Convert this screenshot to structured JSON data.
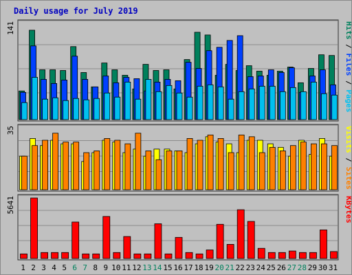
{
  "chart_data": {
    "type": "bar",
    "title": "Daily usage for July 2019",
    "days": [
      "1",
      "2",
      "3",
      "4",
      "5",
      "6",
      "7",
      "8",
      "9",
      "10",
      "11",
      "12",
      "13",
      "14",
      "15",
      "16",
      "17",
      "18",
      "19",
      "20",
      "21",
      "22",
      "23",
      "24",
      "25",
      "26",
      "27",
      "28",
      "29",
      "30",
      "31"
    ],
    "weekend_days": [
      "6",
      "7",
      "13",
      "14",
      "20",
      "21",
      "27",
      "28"
    ],
    "panels": [
      {
        "name": "top",
        "axis_max_label": "141",
        "ylim": [
          0,
          141
        ],
        "legend": [
          "Pages",
          "Files",
          "Hits"
        ],
        "legend_colors": [
          "#00c0f0",
          "#0040ff",
          "#00805c"
        ],
        "series": [
          {
            "name": "Hits",
            "color": "#00805c",
            "values": [
              42,
              131,
              73,
              73,
              72,
              107,
              69,
              48,
              83,
              73,
              65,
              45,
              81,
              72,
              73,
              45,
              88,
              128,
              124,
              65,
              81,
              72,
              79,
              71,
              65,
              71,
              77,
              54,
              75,
              95,
              94
            ]
          },
          {
            "name": "Files",
            "color": "#0040ff",
            "values": [
              40,
              108,
              59,
              53,
              58,
              93,
              59,
              48,
              64,
              54,
              62,
              60,
              42,
              55,
              59,
              57,
              84,
              75,
              101,
              106,
              116,
              123,
              63,
              64,
              73,
              69,
              76,
              40,
              64,
              73,
              51
            ]
          },
          {
            "name": "Pages",
            "color": "#00c0f0",
            "values": [
              25,
              62,
              30,
              32,
              28,
              31,
              29,
              31,
              39,
              33,
              55,
              30,
              59,
              41,
              50,
              39,
              33,
              49,
              51,
              48,
              30,
              41,
              45,
              49,
              49,
              41,
              47,
              41,
              55,
              38,
              36
            ]
          }
        ]
      },
      {
        "name": "middle",
        "axis_max_label": "35",
        "ylim": [
          0,
          35
        ],
        "legend": [
          "Sites",
          "Visits"
        ],
        "legend_colors": [
          "#ff8000",
          "#ffff00"
        ],
        "series": [
          {
            "name": "Visits",
            "color": "#ffff00",
            "values": [
              19,
              29,
              25,
              28,
              26,
              26,
              16,
              21,
              28,
              27,
              21,
              23,
              19,
              23,
              23,
              22,
              21,
              26,
              30,
              27,
              26,
              21,
              28,
              28,
              26,
              24,
              19,
              28,
              20,
              29,
              19
            ]
          },
          {
            "name": "Sites",
            "color": "#ff8000",
            "values": [
              19,
              25,
              28,
              32,
              27,
              27,
              21,
              22,
              29,
              28,
              26,
              32,
              22,
              17,
              22,
              22,
              29,
              28,
              31,
              29,
              21,
              31,
              30,
              21,
              24,
              22,
              25,
              27,
              26,
              26,
              25
            ]
          }
        ]
      },
      {
        "name": "bottom",
        "axis_max_label": "5641",
        "ylim": [
          0,
          5641
        ],
        "legend": [
          "KBytes"
        ],
        "legend_colors": [
          "#ff0000"
        ],
        "series": [
          {
            "name": "KBytes",
            "color": "#ff0000",
            "values": [
              430,
              5641,
              560,
              560,
              560,
              3400,
              430,
              430,
              3920,
              560,
              2050,
              430,
              430,
              3240,
              430,
              1970,
              560,
              430,
              800,
              3190,
              1320,
              4550,
              3460,
              950,
              560,
              560,
              700,
              560,
              560,
              2670,
              650
            ]
          }
        ]
      }
    ]
  }
}
